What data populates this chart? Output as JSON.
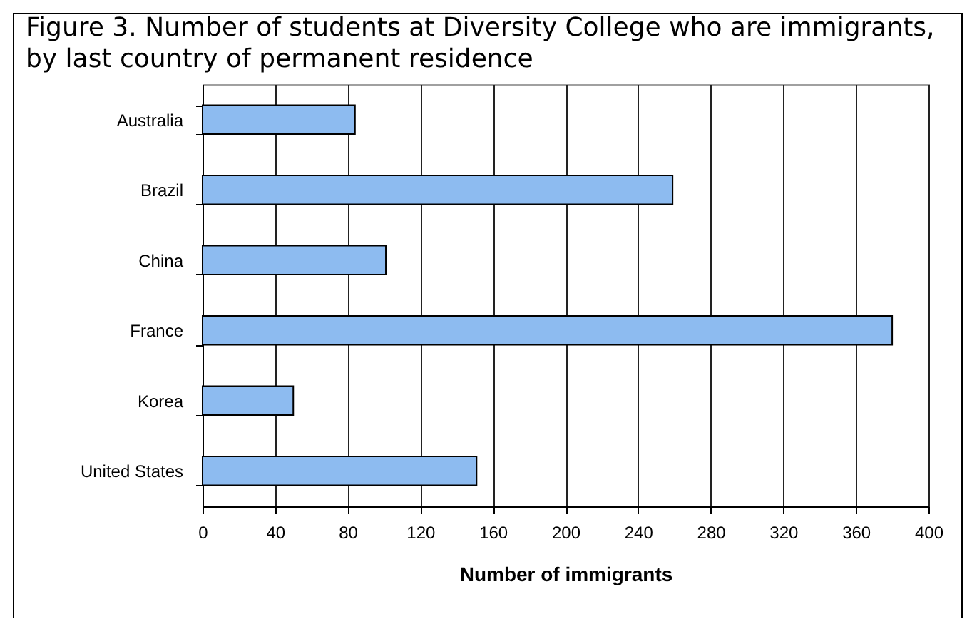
{
  "chart_data": {
    "type": "bar",
    "orientation": "horizontal",
    "title": "Figure 3. Number of students at Diversity College who are immigrants,\nby last country of permanent residence",
    "xlabel": "Number of immigrants",
    "categories": [
      "Australia",
      "Brazil",
      "China",
      "France",
      "Korea",
      "United States"
    ],
    "values": [
      84,
      259,
      101,
      380,
      50,
      151
    ],
    "color": "#8dbbf0",
    "xlim": [
      0,
      400
    ],
    "xticks": [
      0,
      40,
      80,
      120,
      160,
      200,
      240,
      280,
      320,
      360,
      400
    ],
    "grid": "x"
  }
}
